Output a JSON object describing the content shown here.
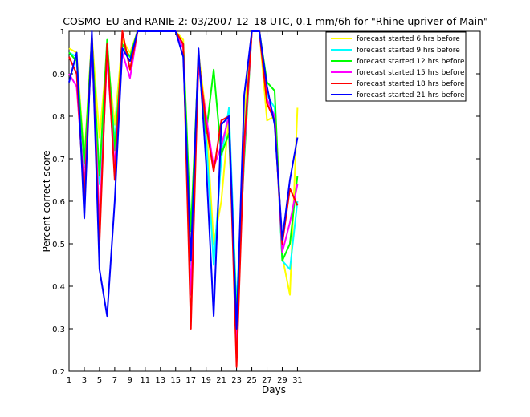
{
  "chart_data": {
    "type": "line",
    "title": "COSMO–EU and RANIE 2: 03/2007 12–18 UTC, 0.1 mm/6h for \"Rhine upriver of Main\"",
    "xlabel": "Days",
    "ylabel": "Percent correct score",
    "xlim": [
      1,
      55
    ],
    "ylim": [
      0.2,
      1
    ],
    "xticks": [
      "1",
      "3",
      "5",
      "7",
      "9",
      "11",
      "13",
      "15",
      "17",
      "19",
      "21",
      "23",
      "25",
      "27",
      "29",
      "31"
    ],
    "yticks": [
      "0.2",
      "0.3",
      "0.4",
      "0.5",
      "0.6",
      "0.7",
      "0.8",
      "0.9",
      "1"
    ],
    "grid": false,
    "legend_position": "top-right",
    "x": [
      1,
      2,
      3,
      4,
      5,
      6,
      7,
      8,
      9,
      10,
      11,
      12,
      13,
      14,
      15,
      16,
      17,
      18,
      19,
      20,
      21,
      22,
      23,
      24,
      25,
      26,
      27,
      28,
      29,
      30,
      31
    ],
    "series": [
      {
        "name": "forecast started 6 hrs before",
        "color": "#ffff00",
        "values": [
          0.96,
          0.95,
          0.7,
          0.99,
          0.75,
          0.95,
          0.78,
          0.98,
          0.95,
          1.0,
          1.0,
          1.0,
          1.0,
          1.0,
          1.0,
          0.98,
          0.5,
          0.95,
          0.8,
          0.5,
          0.6,
          0.8,
          0.3,
          0.8,
          1.0,
          1.0,
          0.79,
          0.8,
          0.47,
          0.38,
          0.82
        ]
      },
      {
        "name": "forecast started 9 hrs before",
        "color": "#00ffff",
        "values": [
          0.95,
          0.94,
          0.68,
          0.98,
          0.64,
          0.97,
          0.74,
          0.96,
          0.94,
          1.0,
          1.0,
          1.0,
          1.0,
          1.0,
          1.0,
          0.97,
          0.45,
          0.93,
          0.75,
          0.45,
          0.7,
          0.82,
          0.35,
          0.75,
          1.0,
          1.0,
          0.85,
          0.82,
          0.46,
          0.44,
          0.6
        ]
      },
      {
        "name": "forecast started 12 hrs before",
        "color": "#00ff00",
        "values": [
          0.95,
          0.93,
          0.69,
          0.98,
          0.66,
          0.98,
          0.72,
          0.97,
          0.94,
          1.0,
          1.0,
          1.0,
          1.0,
          1.0,
          1.0,
          0.97,
          0.53,
          0.94,
          0.76,
          0.91,
          0.71,
          0.76,
          0.33,
          0.7,
          1.0,
          1.0,
          0.88,
          0.86,
          0.46,
          0.5,
          0.66
        ]
      },
      {
        "name": "forecast started 15 hrs before",
        "color": "#ff00ff",
        "values": [
          0.9,
          0.87,
          0.63,
          0.97,
          0.55,
          0.94,
          0.68,
          0.95,
          0.89,
          1.0,
          1.0,
          1.0,
          1.0,
          1.0,
          1.0,
          0.96,
          0.38,
          0.92,
          0.8,
          0.68,
          0.73,
          0.8,
          0.27,
          0.72,
          1.0,
          1.0,
          0.84,
          0.8,
          0.48,
          0.55,
          0.64
        ]
      },
      {
        "name": "forecast started 18 hrs before",
        "color": "#ff0000",
        "values": [
          0.94,
          0.9,
          0.6,
          0.99,
          0.5,
          0.97,
          0.65,
          1.0,
          0.91,
          1.0,
          1.0,
          1.0,
          1.0,
          1.0,
          1.0,
          0.97,
          0.3,
          0.94,
          0.78,
          0.67,
          0.79,
          0.8,
          0.21,
          0.74,
          1.0,
          1.0,
          0.83,
          0.79,
          0.5,
          0.63,
          0.59
        ]
      },
      {
        "name": "forecast started 21 hrs before",
        "color": "#0000ff",
        "values": [
          0.88,
          0.95,
          0.56,
          1.0,
          0.44,
          0.33,
          0.6,
          0.96,
          0.93,
          1.0,
          1.0,
          1.0,
          1.0,
          1.0,
          1.0,
          0.94,
          0.46,
          0.96,
          0.69,
          0.33,
          0.78,
          0.8,
          0.3,
          0.85,
          1.0,
          1.0,
          0.87,
          0.78,
          0.51,
          0.65,
          0.75
        ]
      }
    ]
  }
}
